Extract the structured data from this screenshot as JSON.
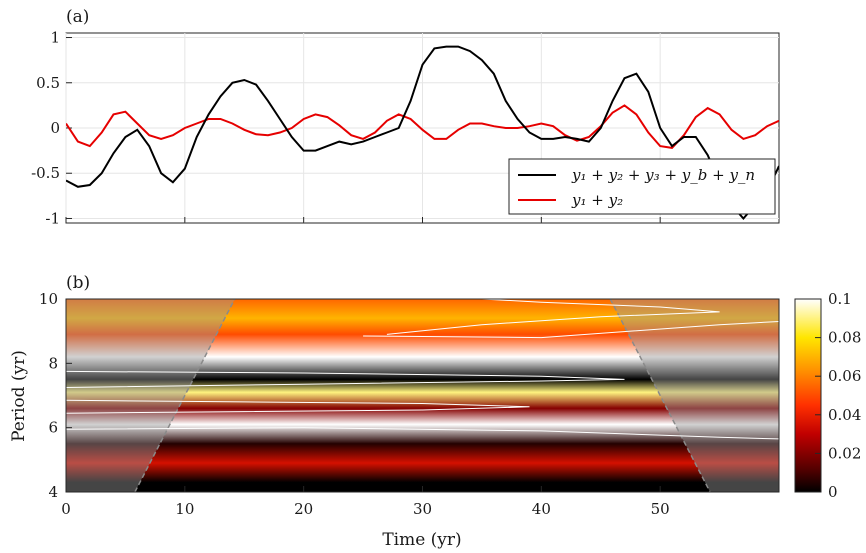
{
  "chart_data": [
    {
      "panel_label": "(a)",
      "type": "line",
      "xlim": [
        0,
        60
      ],
      "ylim": [
        -1.05,
        1.05
      ],
      "yticks": [
        1,
        0.5,
        0,
        -0.5,
        -1
      ],
      "ytick_labels": [
        "1",
        "0.5",
        "0",
        "-0.5",
        "-1"
      ],
      "grid": true,
      "legend_position": "lower-right",
      "series": [
        {
          "name": "y₁ + y₂ + y₃ + y_b + y_n",
          "color": "#000000",
          "points": [
            [
              0,
              -0.58
            ],
            [
              1,
              -0.65
            ],
            [
              2,
              -0.63
            ],
            [
              3,
              -0.5
            ],
            [
              4,
              -0.28
            ],
            [
              5,
              -0.1
            ],
            [
              6,
              -0.02
            ],
            [
              7,
              -0.2
            ],
            [
              8,
              -0.5
            ],
            [
              9,
              -0.6
            ],
            [
              10,
              -0.45
            ],
            [
              11,
              -0.1
            ],
            [
              12,
              0.15
            ],
            [
              13,
              0.35
            ],
            [
              14,
              0.5
            ],
            [
              15,
              0.53
            ],
            [
              16,
              0.48
            ],
            [
              17,
              0.3
            ],
            [
              18,
              0.1
            ],
            [
              19,
              -0.1
            ],
            [
              20,
              -0.25
            ],
            [
              21,
              -0.25
            ],
            [
              22,
              -0.2
            ],
            [
              23,
              -0.15
            ],
            [
              24,
              -0.18
            ],
            [
              25,
              -0.15
            ],
            [
              26,
              -0.1
            ],
            [
              27,
              -0.05
            ],
            [
              28,
              0.0
            ],
            [
              29,
              0.3
            ],
            [
              30,
              0.7
            ],
            [
              31,
              0.88
            ],
            [
              32,
              0.9
            ],
            [
              33,
              0.9
            ],
            [
              34,
              0.85
            ],
            [
              35,
              0.75
            ],
            [
              36,
              0.6
            ],
            [
              37,
              0.3
            ],
            [
              38,
              0.1
            ],
            [
              39,
              -0.05
            ],
            [
              40,
              -0.12
            ],
            [
              41,
              -0.12
            ],
            [
              42,
              -0.1
            ],
            [
              43,
              -0.12
            ],
            [
              44,
              -0.15
            ],
            [
              45,
              0.0
            ],
            [
              46,
              0.3
            ],
            [
              47,
              0.55
            ],
            [
              48,
              0.6
            ],
            [
              49,
              0.4
            ],
            [
              50,
              0.0
            ],
            [
              51,
              -0.2
            ],
            [
              52,
              -0.1
            ],
            [
              53,
              -0.1
            ],
            [
              54,
              -0.3
            ],
            [
              55,
              -0.6
            ],
            [
              56,
              -0.85
            ],
            [
              57,
              -1.0
            ],
            [
              58,
              -0.85
            ],
            [
              59,
              -0.7
            ],
            [
              60,
              -0.42
            ]
          ]
        },
        {
          "name": "y₁ + y₂",
          "color": "#e60000",
          "points": [
            [
              0,
              0.05
            ],
            [
              1,
              -0.15
            ],
            [
              2,
              -0.2
            ],
            [
              3,
              -0.05
            ],
            [
              4,
              0.15
            ],
            [
              5,
              0.18
            ],
            [
              6,
              0.05
            ],
            [
              7,
              -0.08
            ],
            [
              8,
              -0.12
            ],
            [
              9,
              -0.08
            ],
            [
              10,
              0.0
            ],
            [
              11,
              0.05
            ],
            [
              12,
              0.1
            ],
            [
              13,
              0.1
            ],
            [
              14,
              0.05
            ],
            [
              15,
              -0.02
            ],
            [
              16,
              -0.07
            ],
            [
              17,
              -0.08
            ],
            [
              18,
              -0.05
            ],
            [
              19,
              0.0
            ],
            [
              20,
              0.1
            ],
            [
              21,
              0.15
            ],
            [
              22,
              0.12
            ],
            [
              23,
              0.03
            ],
            [
              24,
              -0.08
            ],
            [
              25,
              -0.12
            ],
            [
              26,
              -0.05
            ],
            [
              27,
              0.08
            ],
            [
              28,
              0.15
            ],
            [
              29,
              0.1
            ],
            [
              30,
              -0.02
            ],
            [
              31,
              -0.12
            ],
            [
              32,
              -0.12
            ],
            [
              33,
              -0.02
            ],
            [
              34,
              0.05
            ],
            [
              35,
              0.05
            ],
            [
              36,
              0.02
            ],
            [
              37,
              0.0
            ],
            [
              38,
              0.0
            ],
            [
              39,
              0.02
            ],
            [
              40,
              0.05
            ],
            [
              41,
              0.02
            ],
            [
              42,
              -0.08
            ],
            [
              43,
              -0.14
            ],
            [
              44,
              -0.1
            ],
            [
              45,
              0.02
            ],
            [
              46,
              0.17
            ],
            [
              47,
              0.25
            ],
            [
              48,
              0.15
            ],
            [
              49,
              -0.05
            ],
            [
              50,
              -0.2
            ],
            [
              51,
              -0.22
            ],
            [
              52,
              -0.08
            ],
            [
              53,
              0.12
            ],
            [
              54,
              0.22
            ],
            [
              55,
              0.15
            ],
            [
              56,
              -0.02
            ],
            [
              57,
              -0.12
            ],
            [
              58,
              -0.08
            ],
            [
              59,
              0.02
            ],
            [
              60,
              0.08
            ]
          ]
        }
      ]
    },
    {
      "panel_label": "(b)",
      "type": "heatmap",
      "xlabel": "Time (yr)",
      "ylabel": "Period (yr)",
      "xlim": [
        0,
        60
      ],
      "ylim": [
        4,
        10
      ],
      "xticks": [
        0,
        10,
        20,
        30,
        40,
        50
      ],
      "yticks": [
        4,
        6,
        8,
        10
      ],
      "colorbar": {
        "range": [
          0,
          0.1
        ],
        "ticks": [
          0,
          0.02,
          0.04,
          0.06,
          0.08,
          0.1
        ],
        "tick_labels": [
          "0",
          "0.02",
          "0.04",
          "0.06",
          "0.08",
          "0.1"
        ],
        "colormap": "hot"
      },
      "cone_of_influence": {
        "left": [
          [
            5.8,
            4
          ],
          [
            14.2,
            10
          ]
        ],
        "right": [
          [
            45.8,
            10
          ],
          [
            54.2,
            4
          ]
        ]
      },
      "power_bands_by_period": [
        {
          "period": 4.3,
          "power": 0.0
        },
        {
          "period": 4.9,
          "power": 0.035
        },
        {
          "period": 5.5,
          "power": 0.005
        },
        {
          "period": 6.1,
          "power": 0.1
        },
        {
          "period": 6.6,
          "power": 0.02
        },
        {
          "period": 7.1,
          "power": 0.09
        },
        {
          "period": 7.5,
          "power": 0.0
        },
        {
          "period": 8.2,
          "power": 0.1
        },
        {
          "period": 8.9,
          "power": 0.05
        },
        {
          "period": 9.4,
          "power": 0.07
        },
        {
          "period": 10.0,
          "power": 0.055
        }
      ]
    }
  ]
}
